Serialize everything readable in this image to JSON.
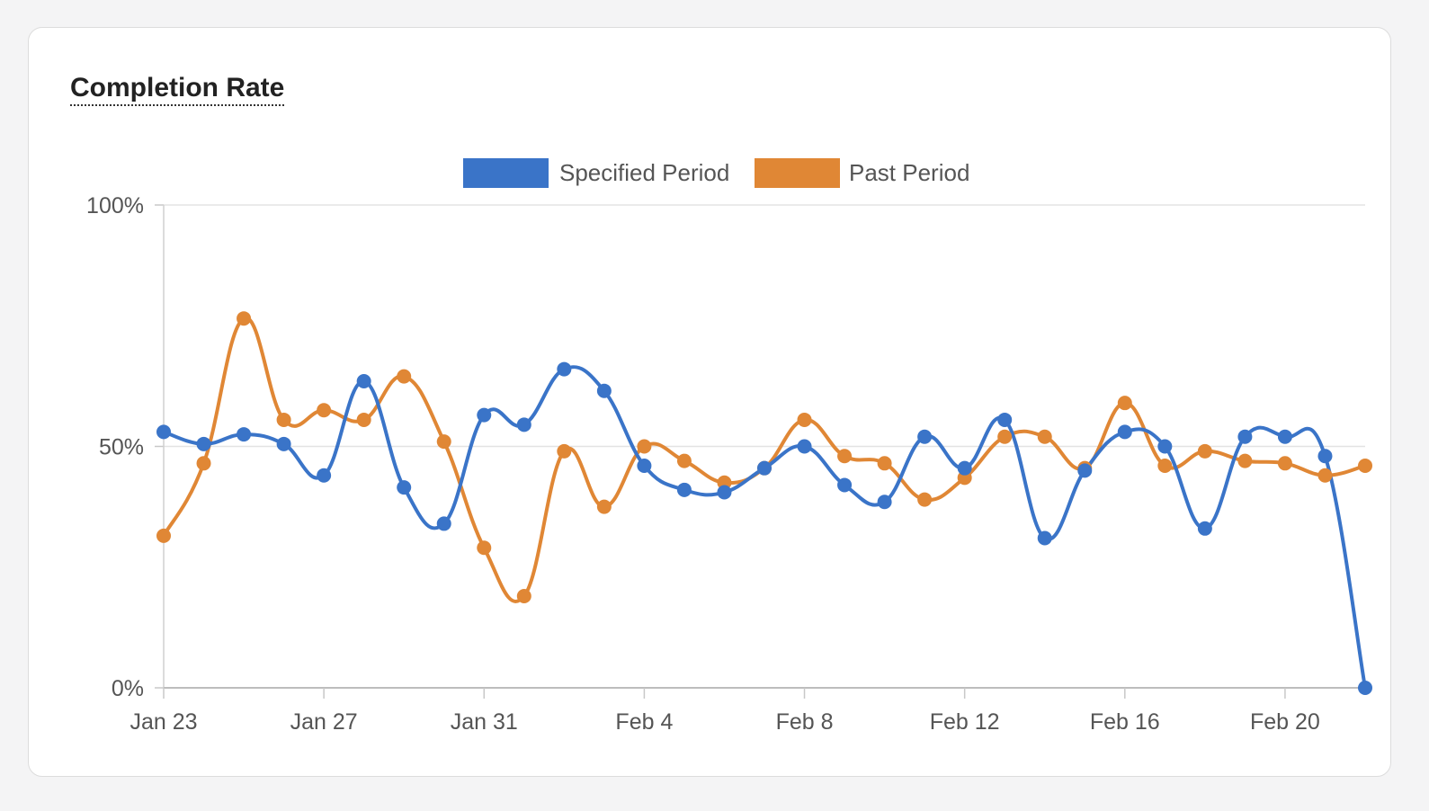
{
  "card": {
    "title": "Completion Rate"
  },
  "chart_data": {
    "type": "line",
    "title": "Completion Rate",
    "xlabel": "",
    "ylabel": "",
    "x": [
      "Jan 23",
      "Jan 24",
      "Jan 25",
      "Jan 26",
      "Jan 27",
      "Jan 28",
      "Jan 29",
      "Jan 30",
      "Jan 31",
      "Feb 1",
      "Feb 2",
      "Feb 3",
      "Feb 4",
      "Feb 5",
      "Feb 6",
      "Feb 7",
      "Feb 8",
      "Feb 9",
      "Feb 10",
      "Feb 11",
      "Feb 12",
      "Feb 13",
      "Feb 14",
      "Feb 15",
      "Feb 16",
      "Feb 17",
      "Feb 18",
      "Feb 19",
      "Feb 20",
      "Feb 21",
      "Feb 22"
    ],
    "x_tick_labels": [
      "Jan 23",
      "Jan 27",
      "Jan 31",
      "Feb 4",
      "Feb 8",
      "Feb 12",
      "Feb 16",
      "Feb 20"
    ],
    "y_tick_labels": [
      "0%",
      "50%",
      "100%"
    ],
    "ylim": [
      0,
      100
    ],
    "grid": true,
    "legend_position": "top-center",
    "series": [
      {
        "name": "Specified Period",
        "color": "#3a74c8",
        "values": [
          53,
          50.5,
          52.5,
          50.5,
          44,
          63.5,
          41.5,
          34,
          56.5,
          54.5,
          66,
          61.5,
          46,
          41,
          40.5,
          45.5,
          50,
          42,
          38.5,
          52,
          45.5,
          55.5,
          31,
          45,
          53,
          50,
          33,
          52,
          52,
          48,
          0
        ]
      },
      {
        "name": "Past Period",
        "color": "#e08735",
        "values": [
          31.5,
          46.5,
          76.5,
          55.5,
          57.5,
          55.5,
          64.5,
          51,
          29,
          19,
          49,
          37.5,
          50,
          47,
          42.5,
          45.5,
          55.5,
          48,
          46.5,
          39,
          43.5,
          52,
          52,
          45.5,
          59,
          46,
          49,
          47,
          46.5,
          44,
          46
        ]
      }
    ]
  }
}
